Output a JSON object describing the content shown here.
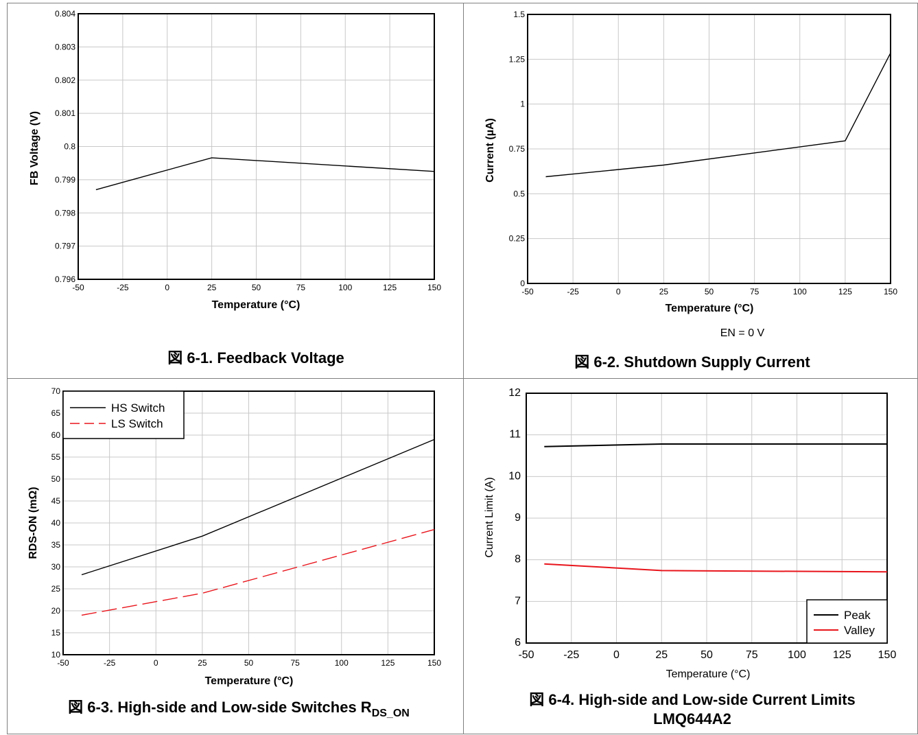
{
  "charts": [
    {
      "title": "Feedback Voltage",
      "caption_prefix": "図 6-1.",
      "caption_text": "Feedback Voltage",
      "chart_data": {
        "type": "line",
        "title": "",
        "xlabel": "Temperature (°C)",
        "ylabel": "FB Voltage (V)",
        "xlim": [
          -50,
          150
        ],
        "ylim": [
          0.796,
          0.804
        ],
        "xticks": [
          "-50",
          "-25",
          "0",
          "25",
          "50",
          "75",
          "100",
          "125",
          "150"
        ],
        "yticks": [
          "0.796",
          "0.797",
          "0.798",
          "0.799",
          "0.8",
          "0.801",
          "0.802",
          "0.803",
          "0.804"
        ],
        "grid": true,
        "series": [
          {
            "x": [
              -40,
              25,
              150
            ],
            "y": [
              0.7987,
              0.79966,
              0.79925
            ],
            "color": "#000000"
          }
        ]
      }
    },
    {
      "title": "Shutdown Supply Current",
      "caption_prefix": "図 6-2.",
      "caption_text": "Shutdown Supply Current",
      "note": "EN = 0 V",
      "chart_data": {
        "type": "line",
        "title": "",
        "xlabel": "Temperature (°C)",
        "ylabel": "Current (µA)",
        "xlim": [
          -50,
          150
        ],
        "ylim": [
          0,
          1.5
        ],
        "xticks": [
          "-50",
          "-25",
          "0",
          "25",
          "50",
          "75",
          "100",
          "125",
          "150"
        ],
        "yticks": [
          "0",
          "0.25",
          "0.5",
          "0.75",
          "1",
          "1.25",
          "1.5"
        ],
        "grid": true,
        "series": [
          {
            "x": [
              -40,
              25,
              125,
              150
            ],
            "y": [
              0.595,
              0.66,
              0.795,
              1.285
            ],
            "color": "#000000"
          }
        ]
      }
    },
    {
      "title": "High-side and Low-side Switches RDS_ON",
      "caption_prefix": "図 6-3.",
      "caption_text": "High-side and Low-side Switches R",
      "caption_sub": "DS_ON",
      "chart_data": {
        "type": "line",
        "title": "",
        "xlabel": "Temperature (°C)",
        "ylabel": "RDS-ON (mΩ)",
        "xlim": [
          -50,
          150
        ],
        "ylim": [
          10,
          70
        ],
        "xticks": [
          "-50",
          "-25",
          "0",
          "25",
          "50",
          "75",
          "100",
          "125",
          "150"
        ],
        "yticks": [
          "10",
          "15",
          "20",
          "25",
          "30",
          "35",
          "40",
          "45",
          "50",
          "55",
          "60",
          "65",
          "70"
        ],
        "grid": true,
        "legend": "top-left",
        "series": [
          {
            "name": "HS Switch",
            "x": [
              -40,
              25,
              150
            ],
            "y": [
              28.2,
              37,
              59
            ],
            "color": "#000000",
            "dash": "none"
          },
          {
            "name": "LS Switch",
            "x": [
              -40,
              25,
              150
            ],
            "y": [
              19,
              24,
              38.5
            ],
            "color": "#e8141b",
            "dash": "22,8"
          }
        ]
      }
    },
    {
      "title": "High-side and Low-side Current Limits LMQ644A2",
      "caption_prefix": "図 6-4.",
      "caption_text": "High-side and Low-side Current Limits",
      "caption_line2": "LMQ644A2",
      "chart_data": {
        "type": "line",
        "title": "",
        "xlabel": "Temperature (°C)",
        "ylabel": "Current Limit (A)",
        "xlim": [
          -50,
          150
        ],
        "ylim": [
          6,
          12
        ],
        "xticks": [
          "-50",
          "-25",
          "0",
          "25",
          "50",
          "75",
          "100",
          "125",
          "150"
        ],
        "yticks": [
          "6",
          "7",
          "8",
          "9",
          "10",
          "11",
          "12"
        ],
        "grid": true,
        "legend": "bottom-right",
        "series": [
          {
            "name": "Peak",
            "x": [
              -40,
              25,
              150
            ],
            "y": [
              10.72,
              10.78,
              10.78
            ],
            "color": "#000000",
            "dash": "none"
          },
          {
            "name": "Valley",
            "x": [
              -40,
              25,
              150
            ],
            "y": [
              7.9,
              7.74,
              7.71
            ],
            "color": "#e8141b",
            "dash": "none"
          }
        ]
      }
    }
  ]
}
